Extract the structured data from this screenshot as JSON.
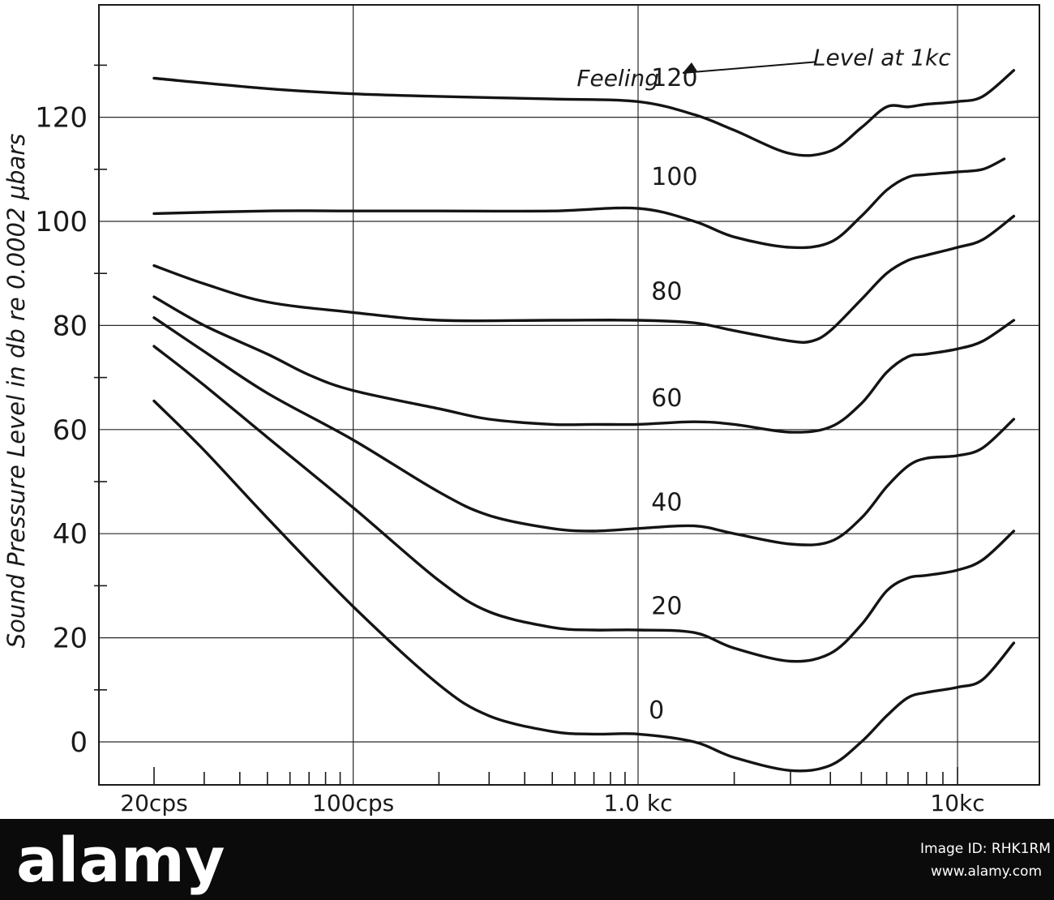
{
  "chart_data": {
    "type": "line",
    "title": "",
    "ylabel": "Sound Pressure Level in db re 0.0002 μbars",
    "xlabel": "",
    "x_scale": "log",
    "xlim": [
      17,
      16000
    ],
    "ylim": [
      -8,
      138
    ],
    "grid": true,
    "x_ticks": [
      {
        "value": 20,
        "label": "20cps"
      },
      {
        "value": 100,
        "label": "100cps"
      },
      {
        "value": 1000,
        "label": "1.0 kc"
      },
      {
        "value": 10000,
        "label": "10kc"
      }
    ],
    "y_ticks": [
      {
        "value": 0,
        "label": "0"
      },
      {
        "value": 20,
        "label": "20"
      },
      {
        "value": 40,
        "label": "40"
      },
      {
        "value": 60,
        "label": "60"
      },
      {
        "value": 80,
        "label": "80"
      },
      {
        "value": 100,
        "label": "100"
      },
      {
        "value": 120,
        "label": "120"
      }
    ],
    "annotations": [
      {
        "text": "Feeling",
        "x": 850,
        "y": 126
      },
      {
        "text": "Level at 1kc",
        "x": 5800,
        "y": 130
      }
    ],
    "series": [
      {
        "name": "120",
        "x": [
          20,
          50,
          100,
          200,
          500,
          1000,
          1500,
          2000,
          3000,
          4000,
          5000,
          6000,
          7000,
          8000,
          10000,
          12000,
          15000
        ],
        "y": [
          127.5,
          125.5,
          124.5,
          124,
          123.5,
          123,
          120.5,
          117.5,
          113,
          113.5,
          118,
          122,
          122,
          122.5,
          123,
          124,
          129
        ]
      },
      {
        "name": "100",
        "x": [
          20,
          50,
          100,
          200,
          500,
          1000,
          1500,
          2000,
          3000,
          4000,
          5000,
          6000,
          7000,
          8000,
          10000,
          12000,
          14000
        ],
        "y": [
          101.5,
          102,
          102,
          102,
          102,
          102.5,
          100,
          97,
          95,
          96,
          101,
          106,
          108.5,
          109,
          109.5,
          110,
          112
        ]
      },
      {
        "name": "80",
        "x": [
          20,
          30,
          50,
          100,
          200,
          500,
          1000,
          1500,
          2000,
          3000,
          3500,
          4000,
          5000,
          6000,
          7000,
          8000,
          10000,
          12000,
          15000
        ],
        "y": [
          91.5,
          88,
          84.5,
          82.5,
          81,
          81,
          81,
          80.5,
          79,
          77,
          77,
          79,
          85,
          90,
          92.5,
          93.5,
          95,
          96.5,
          101
        ]
      },
      {
        "name": "60",
        "x": [
          20,
          30,
          50,
          70,
          100,
          200,
          300,
          500,
          700,
          1000,
          1500,
          2000,
          3000,
          4000,
          5000,
          6000,
          7000,
          8000,
          10000,
          12000,
          15000
        ],
        "y": [
          85.5,
          80,
          74.5,
          70.5,
          67.5,
          64,
          62,
          61,
          61,
          61,
          61.5,
          61,
          59.5,
          60.5,
          65,
          71,
          74,
          74.5,
          75.5,
          77,
          81
        ]
      },
      {
        "name": "40",
        "x": [
          20,
          30,
          50,
          100,
          200,
          300,
          500,
          700,
          1000,
          1500,
          2000,
          3000,
          4000,
          5000,
          6000,
          7000,
          8000,
          10000,
          12000,
          15000
        ],
        "y": [
          81.5,
          75,
          67,
          58,
          48,
          43.5,
          41,
          40.5,
          41,
          41.5,
          40,
          38,
          38.5,
          43,
          49,
          53,
          54.5,
          55,
          56.5,
          62
        ]
      },
      {
        "name": "20",
        "x": [
          20,
          30,
          50,
          100,
          200,
          300,
          500,
          700,
          1000,
          1500,
          2000,
          3000,
          4000,
          5000,
          6000,
          7000,
          8000,
          10000,
          12000,
          15000
        ],
        "y": [
          76,
          68.5,
          58.5,
          45,
          31,
          25,
          22,
          21.5,
          21.5,
          21,
          18,
          15.5,
          17,
          22.5,
          29,
          31.5,
          32,
          33,
          35,
          40.5
        ]
      },
      {
        "name": "0",
        "x": [
          20,
          30,
          50,
          100,
          200,
          300,
          500,
          700,
          1000,
          1500,
          2000,
          3000,
          4000,
          5000,
          6000,
          7000,
          8000,
          10000,
          12000,
          15000
        ],
        "y": [
          65.5,
          56,
          43,
          26,
          11,
          5,
          2,
          1.5,
          1.5,
          0,
          -3,
          -5.5,
          -4.5,
          0,
          5,
          8.5,
          9.5,
          10.5,
          12,
          19
        ]
      }
    ],
    "curve_label_positions": [
      {
        "name": "120",
        "x": 1100,
        "y": 126
      },
      {
        "name": "100",
        "x": 1100,
        "y": 107
      },
      {
        "name": "80",
        "x": 1100,
        "y": 85
      },
      {
        "name": "60",
        "x": 1100,
        "y": 64.5
      },
      {
        "name": "40",
        "x": 1100,
        "y": 44.5
      },
      {
        "name": "20",
        "x": 1100,
        "y": 24.5
      },
      {
        "name": "0",
        "x": 1080,
        "y": 4.5
      }
    ]
  },
  "watermark": {
    "logo_text": "alamy",
    "image_id_label": "Image ID: RHK1RM",
    "site": "www.alamy.com"
  }
}
